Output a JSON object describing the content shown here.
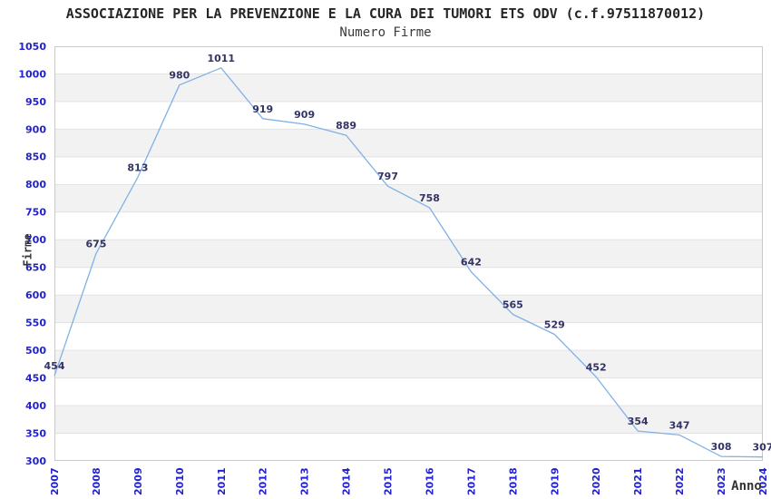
{
  "chart_data": {
    "type": "line",
    "title": "ASSOCIAZIONE PER LA PREVENZIONE E LA CURA DEI TUMORI ETS ODV (c.f.97511870012)",
    "subtitle": "Numero Firme",
    "xlabel": "Anno",
    "ylabel": "Firme",
    "categories": [
      "2007",
      "2008",
      "2009",
      "2010",
      "2011",
      "2012",
      "2013",
      "2014",
      "2015",
      "2016",
      "2017",
      "2018",
      "2019",
      "2020",
      "2021",
      "2022",
      "2023",
      "2024"
    ],
    "values": [
      454,
      675,
      813,
      980,
      1011,
      919,
      909,
      889,
      797,
      758,
      642,
      565,
      529,
      452,
      354,
      347,
      308,
      307
    ],
    "ylim": [
      300,
      1050
    ],
    "yticks": [
      300,
      350,
      400,
      450,
      500,
      550,
      600,
      650,
      700,
      750,
      800,
      850,
      900,
      950,
      1000,
      1050
    ],
    "grid": "horizontal",
    "legend": "none",
    "value_labels_shown": true,
    "x_tick_rotation_degrees": -90,
    "colors": {
      "line": "#7fb1e6",
      "tick_label": "#2222cc",
      "value_label": "#333366",
      "band_gray": "#f2f2f2",
      "gridline": "#e2e2e2",
      "plot_border": "#c9c9c9",
      "title_text": "#262626",
      "axis_label_text": "#333333"
    }
  }
}
